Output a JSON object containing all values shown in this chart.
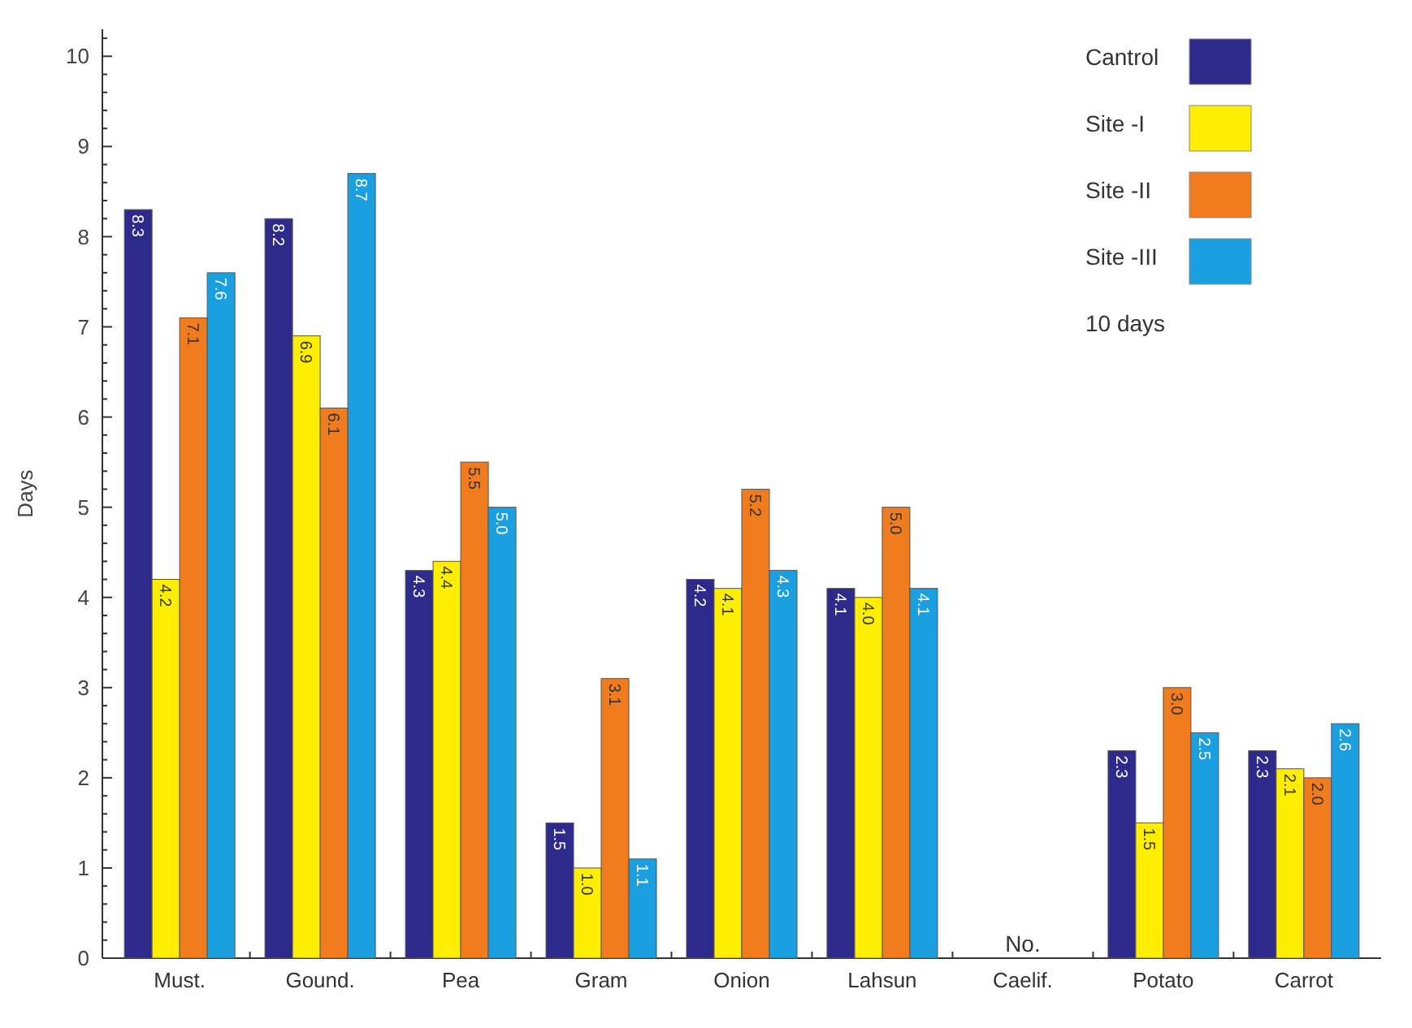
{
  "chart_data": {
    "type": "bar",
    "ylabel": "Days",
    "legend_title": "10 days",
    "categories": [
      "Must.",
      "Gound.",
      "Pea",
      "Gram",
      "Onion",
      "Lahsun",
      "Caelif.",
      "Potato",
      "Carrot"
    ],
    "series": [
      {
        "name": "Cantrol",
        "color": "#2e2a8c",
        "values": [
          8.3,
          8.2,
          4.3,
          1.5,
          4.2,
          4.1,
          null,
          2.3,
          2.3
        ],
        "value_labels": [
          "8.3",
          "8.2",
          "4.3",
          "1.5",
          "4.2",
          "4.1",
          null,
          "2.3",
          "2.3"
        ]
      },
      {
        "name": "Site -I",
        "color": "#ffee00",
        "values": [
          4.2,
          6.9,
          4.4,
          1.0,
          4.1,
          4.0,
          null,
          1.5,
          2.1
        ],
        "value_labels": [
          "4.2",
          "6.9",
          "4.4",
          "1.0",
          "4.1",
          "4.0",
          null,
          "1.5",
          "2.1"
        ]
      },
      {
        "name": "Site -II",
        "color": "#f07c1e",
        "values": [
          7.1,
          6.1,
          5.5,
          3.1,
          5.2,
          5.0,
          null,
          3.0,
          2.0
        ],
        "value_labels": [
          "7.1",
          "6.1",
          "5.5",
          "3.1",
          "5.2",
          "5.0",
          null,
          "3.0",
          "2.0"
        ]
      },
      {
        "name": "Site -III",
        "color": "#1a9fe0",
        "values": [
          7.6,
          8.7,
          5.0,
          1.1,
          4.3,
          4.1,
          null,
          2.5,
          2.6
        ],
        "value_labels": [
          "7.6",
          "8.7",
          "5.0",
          "1.1",
          "4.3",
          "4.1",
          null,
          "2.5",
          "2.6"
        ]
      }
    ],
    "ylim": [
      0,
      10.3
    ],
    "yticks": [
      0,
      {
        "value": 0.2,
        "label": null
      },
      {
        "value": 0.4,
        "label": null
      },
      {
        "value": 0.6,
        "label": null
      },
      {
        "value": 0.8,
        "label": null
      },
      1,
      {
        "value": 1.2,
        "label": null
      },
      {
        "value": 1.4,
        "label": null
      },
      {
        "value": 1.6,
        "label": null
      },
      {
        "value": 1.8,
        "label": null
      },
      2,
      {
        "value": 2.2,
        "label": null
      },
      {
        "value": 2.4,
        "label": null
      },
      {
        "value": 2.6,
        "label": null
      },
      {
        "value": 2.8,
        "label": null
      },
      3,
      {
        "value": 3.2,
        "label": null
      },
      {
        "value": 3.4,
        "label": null
      },
      {
        "value": 3.6,
        "label": null
      },
      {
        "value": 3.8,
        "label": null
      },
      4,
      {
        "value": 4.2,
        "label": null
      },
      {
        "value": 4.4,
        "label": null
      },
      {
        "value": 4.6,
        "label": null
      },
      {
        "value": 4.8,
        "label": null
      },
      5,
      {
        "value": 5.2,
        "label": null
      },
      {
        "value": 5.4,
        "label": null
      },
      {
        "value": 5.6,
        "label": null
      },
      {
        "value": 5.8,
        "label": null
      },
      6,
      {
        "value": 6.2,
        "label": null
      },
      {
        "value": 6.4,
        "label": null
      },
      {
        "value": 6.6,
        "label": null
      },
      {
        "value": 6.8,
        "label": null
      },
      7,
      {
        "value": 7.2,
        "label": null
      },
      {
        "value": 7.4,
        "label": null
      },
      {
        "value": 7.6,
        "label": null
      },
      {
        "value": 7.8,
        "label": null
      },
      8,
      {
        "value": 8.2,
        "label": null
      },
      {
        "value": 8.4,
        "label": null
      },
      {
        "value": 8.6,
        "label": null
      },
      {
        "value": 8.8,
        "label": null
      },
      9,
      {
        "value": 9.2,
        "label": null
      },
      {
        "value": 9.4,
        "label": null
      },
      {
        "value": 9.6,
        "label": null
      },
      {
        "value": 9.8,
        "label": null
      },
      10,
      {
        "value": 10.2,
        "label": null
      }
    ],
    "annotations": [
      "No."
    ],
    "legend": "top right",
    "grid": false
  }
}
